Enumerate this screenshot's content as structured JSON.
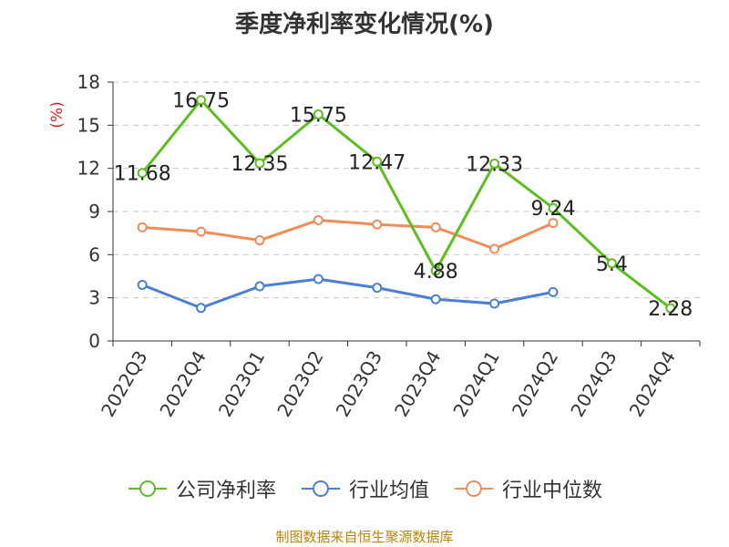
{
  "title": "季度净利率变化情况(%)",
  "footer": "制图数据来自恒生聚源数据库",
  "chart_data": {
    "type": "line",
    "title": "季度净利率变化情况(%)",
    "ylabel": "(%)",
    "xlabel": "",
    "ylim": [
      0,
      18
    ],
    "yticks": [
      0,
      3,
      6,
      9,
      12,
      15,
      18
    ],
    "grid": true,
    "legend_position": "bottom",
    "categories": [
      "2022Q3",
      "2022Q4",
      "2023Q1",
      "2023Q2",
      "2023Q3",
      "2023Q4",
      "2024Q1",
      "2024Q2",
      "2024Q3",
      "2024Q4"
    ],
    "series": [
      {
        "name": "公司净利率",
        "color": "#5cbf1f",
        "values": [
          11.68,
          16.75,
          12.35,
          15.75,
          12.47,
          4.88,
          12.33,
          9.24,
          5.4,
          2.28
        ],
        "labels": [
          "11.68",
          "16.75",
          "12.35",
          "15.75",
          "12.47",
          "4.88",
          "12.33",
          "9.24",
          "5.4",
          "2.28"
        ]
      },
      {
        "name": "行业均值",
        "color": "#4b7fd6",
        "values": [
          3.9,
          2.3,
          3.8,
          4.3,
          3.7,
          2.9,
          2.6,
          3.4,
          null,
          null
        ]
      },
      {
        "name": "行业中位数",
        "color": "#f08c5a",
        "values": [
          7.9,
          7.6,
          7.0,
          8.4,
          8.1,
          7.9,
          6.4,
          8.2,
          null,
          null
        ]
      }
    ]
  }
}
